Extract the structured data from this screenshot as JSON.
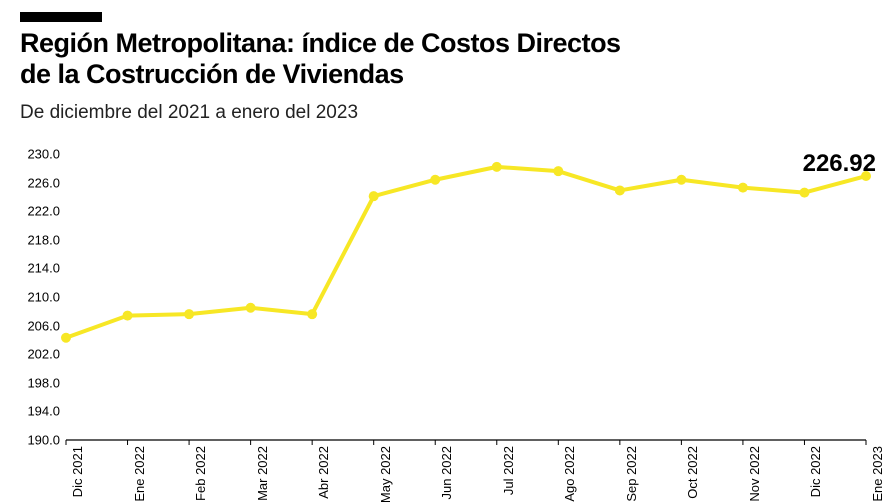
{
  "title_line1": "Región Metropolitana: índice de Costos Directos",
  "title_line2": "de la  Costrucción de Viviendas",
  "subtitle": "De diciembre del 2021 a enero del 2023",
  "chart": {
    "type": "line",
    "categories": [
      "Dic 2021",
      "Ene 2022",
      "Feb 2022",
      "Mar 2022",
      "Abr 2022",
      "May 2022",
      "Jun 2022",
      "Jul 2022",
      "Ago 2022",
      "Sep 2022",
      "Oct 2022",
      "Nov 2022",
      "Dic 2022",
      "Ene 2023"
    ],
    "values": [
      204.3,
      207.4,
      207.6,
      208.5,
      207.6,
      224.1,
      226.4,
      228.2,
      227.6,
      224.9,
      226.4,
      225.3,
      224.6,
      226.92
    ],
    "ylim": [
      190.0,
      230.0
    ],
    "yticks": [
      190.0,
      194.0,
      198.0,
      202.0,
      206.0,
      210.0,
      214.0,
      218.0,
      222.0,
      226.0,
      230.0
    ],
    "line_color": "#f7e725",
    "line_width": 4,
    "marker_radius": 5,
    "marker_color": "#f7e725",
    "background_color": "#ffffff",
    "axis_color": "#000000",
    "callout_value": "226.92"
  }
}
